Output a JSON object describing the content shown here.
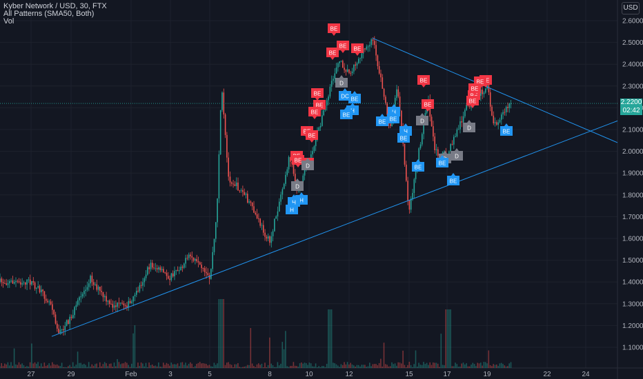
{
  "legend": {
    "title": "Kyber Network / USD, 30, FTX",
    "indicator": "All Patterns (SMA50, Both)",
    "volume": "Vol"
  },
  "currency_button": "USD",
  "price_badges": {
    "last_price": "2.2200",
    "countdown": "02:42"
  },
  "colors": {
    "background": "#131722",
    "grid": "#1e222d",
    "up": "#26a69a",
    "down": "#ef5350",
    "trendline": "#2196f3",
    "badge_red": "#f23645",
    "badge_blue": "#2196f3",
    "badge_gray": "#787b86",
    "axis_text": "#b2b5be"
  },
  "axes": {
    "y_ticks": [
      "2.6000",
      "2.5000",
      "2.4000",
      "2.3000",
      "2.2000",
      "2.1000",
      "2.0000",
      "1.9000",
      "1.8000",
      "1.7000",
      "1.6000",
      "1.5000",
      "1.4000",
      "1.3000",
      "1.2000",
      "1.1000"
    ],
    "x_ticks": [
      "27",
      "29",
      "Feb",
      "3",
      "5",
      "8",
      "10",
      "12",
      "15",
      "17",
      "19",
      "22",
      "24"
    ]
  },
  "chart_data": {
    "type": "candlestick",
    "title": "Kyber Network / USD, 30, FTX",
    "ylim": [
      1.0,
      2.65
    ],
    "price_path": [
      {
        "x": "27",
        "y": 1.4
      },
      {
        "x": "28",
        "y": 1.3
      },
      {
        "x": "28",
        "y": 1.16
      },
      {
        "x": "29",
        "y": 1.24
      },
      {
        "x": "30",
        "y": 1.42
      },
      {
        "x": "31",
        "y": 1.29
      },
      {
        "x": "Feb",
        "y": 1.3
      },
      {
        "x": "2",
        "y": 1.48
      },
      {
        "x": "3",
        "y": 1.42
      },
      {
        "x": "4",
        "y": 1.52
      },
      {
        "x": "5",
        "y": 1.41
      },
      {
        "x": "5",
        "y": 1.7
      },
      {
        "x": "6",
        "y": 2.3
      },
      {
        "x": "6",
        "y": 1.88
      },
      {
        "x": "7",
        "y": 1.8
      },
      {
        "x": "8",
        "y": 1.58
      },
      {
        "x": "9",
        "y": 1.98
      },
      {
        "x": "9",
        "y": 1.82
      },
      {
        "x": "10",
        "y": 1.95
      },
      {
        "x": "11",
        "y": 2.3
      },
      {
        "x": "11",
        "y": 2.42
      },
      {
        "x": "12",
        "y": 2.36
      },
      {
        "x": "13",
        "y": 2.52
      },
      {
        "x": "14",
        "y": 2.1
      },
      {
        "x": "14",
        "y": 2.3
      },
      {
        "x": "15",
        "y": 1.72
      },
      {
        "x": "16",
        "y": 2.25
      },
      {
        "x": "16",
        "y": 2.0
      },
      {
        "x": "17",
        "y": 1.98
      },
      {
        "x": "18",
        "y": 2.2
      },
      {
        "x": "19",
        "y": 2.3
      },
      {
        "x": "19",
        "y": 2.12
      },
      {
        "x": "20",
        "y": 2.22
      }
    ],
    "last_price": 2.22,
    "trendlines": [
      {
        "name": "",
        "from": {
          "x": "28",
          "y": 1.15
        },
        "to": {
          "x": "25",
          "y": 2.14
        }
      },
      {
        "name": "",
        "from": {
          "x": "13",
          "y": 2.52
        },
        "to": {
          "x": "25",
          "y": 2.04
        }
      }
    ],
    "pattern_labels": [
      {
        "text": "BE",
        "type": "bearish"
      },
      {
        "text": "BE",
        "type": "bearish"
      },
      {
        "text": "BE",
        "type": "bearish"
      },
      {
        "text": "BE",
        "type": "bearish"
      },
      {
        "text": "BE",
        "type": "bearish"
      },
      {
        "text": "BE",
        "type": "bearish"
      },
      {
        "text": "BE",
        "type": "bearish"
      },
      {
        "text": "BE",
        "type": "bearish"
      },
      {
        "text": "BE",
        "type": "bearish"
      },
      {
        "text": "BE",
        "type": "bearish"
      },
      {
        "text": "BE",
        "type": "bearish"
      },
      {
        "text": "BE",
        "type": "bearish"
      },
      {
        "text": "BE",
        "type": "bearish"
      },
      {
        "text": "BE",
        "type": "bearish"
      },
      {
        "text": "BE",
        "type": "bearish"
      },
      {
        "text": "BE",
        "type": "bearish"
      },
      {
        "text": "BE",
        "type": "bearish"
      },
      {
        "text": "BE",
        "type": "bearish"
      },
      {
        "text": "BE",
        "type": "bearish"
      },
      {
        "text": "D",
        "type": "neutral"
      },
      {
        "text": "D",
        "type": "neutral"
      },
      {
        "text": "D",
        "type": "neutral"
      },
      {
        "text": "D",
        "type": "neutral"
      },
      {
        "text": "D",
        "type": "neutral"
      },
      {
        "text": "D",
        "type": "neutral"
      },
      {
        "text": "D",
        "type": "neutral"
      },
      {
        "text": "H",
        "type": "bullish"
      },
      {
        "text": "H",
        "type": "bullish"
      },
      {
        "text": "H",
        "type": "bullish"
      },
      {
        "text": "H",
        "type": "bullish"
      },
      {
        "text": "H",
        "type": "bullish"
      },
      {
        "text": "H",
        "type": "bullish"
      },
      {
        "text": "BE",
        "type": "bullish"
      },
      {
        "text": "BE",
        "type": "bullish"
      },
      {
        "text": "BE",
        "type": "bullish"
      },
      {
        "text": "BE",
        "type": "bullish"
      },
      {
        "text": "BE",
        "type": "bullish"
      },
      {
        "text": "BE",
        "type": "bullish"
      },
      {
        "text": "BE",
        "type": "bullish"
      },
      {
        "text": "BE",
        "type": "bullish"
      },
      {
        "text": "DC",
        "type": "bullish"
      },
      {
        "text": "BE",
        "type": "bullish"
      }
    ]
  }
}
